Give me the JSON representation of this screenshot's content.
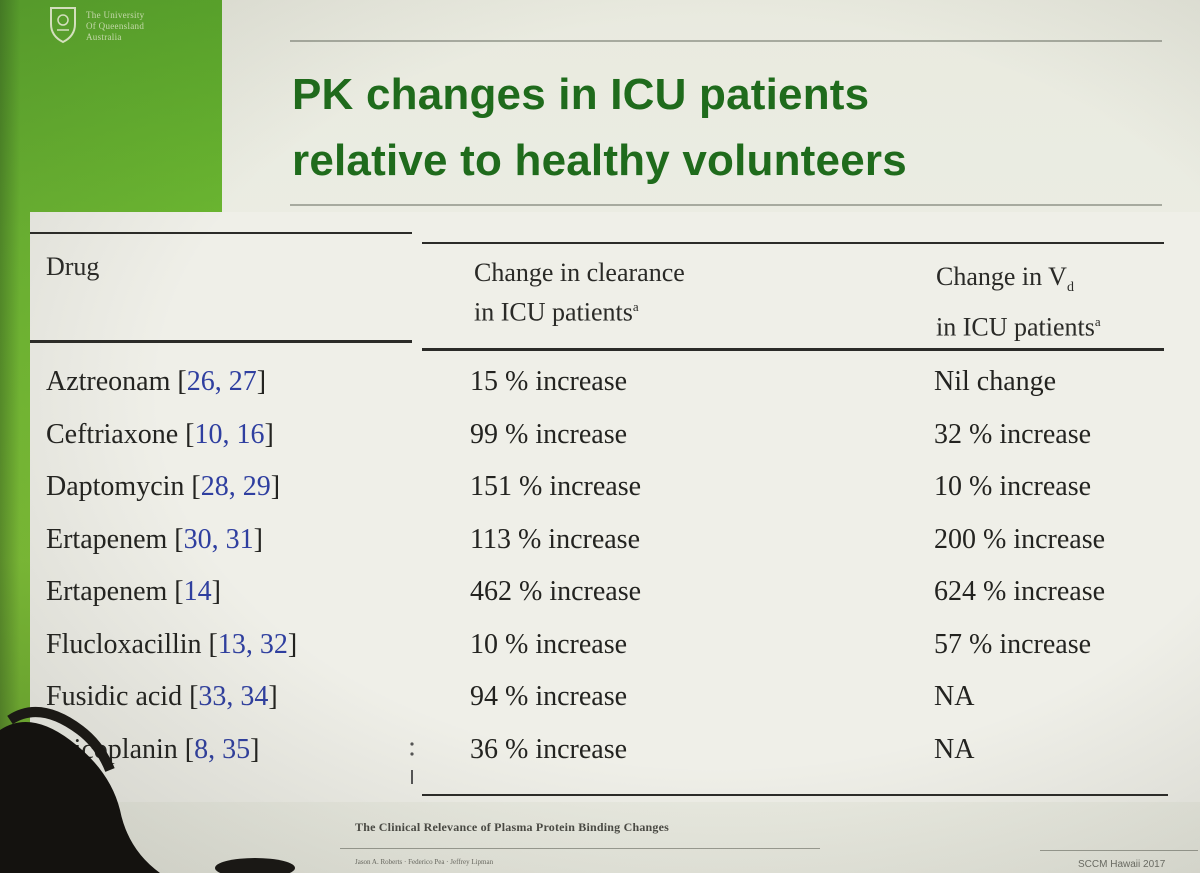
{
  "logo": {
    "text_lines": [
      "The University",
      "Of Queensland",
      "Australia"
    ]
  },
  "title": {
    "line1": "PK changes in ICU patients",
    "line2": "relative to healthy volunteers"
  },
  "table": {
    "headers": {
      "drug": "Drug",
      "clearance_line1": "Change in clearance",
      "clearance_line2": "in ICU patients",
      "clearance_sup": "a",
      "vd_line1": "Change in V",
      "vd_sub": "d",
      "vd_line2": "in ICU patients",
      "vd_sup": "a"
    },
    "rows": [
      {
        "drug": "Aztreonam",
        "refs": "26, 27",
        "clearance": "15 % increase",
        "vd": "Nil change"
      },
      {
        "drug": "Ceftriaxone",
        "refs": "10, 16",
        "clearance": "99 % increase",
        "vd": "32 % increase"
      },
      {
        "drug": "Daptomycin",
        "refs": "28, 29",
        "clearance": "151 % increase",
        "vd": "10 % increase"
      },
      {
        "drug": "Ertapenem",
        "refs": "30, 31",
        "clearance": "113 % increase",
        "vd": "200 % increase"
      },
      {
        "drug": "Ertapenem",
        "refs": "14",
        "clearance": "462 % increase",
        "vd": "624 % increase"
      },
      {
        "drug": "Flucloxacillin",
        "refs": "13, 32",
        "clearance": "10 % increase",
        "vd": "57 % increase"
      },
      {
        "drug": "Fusidic acid",
        "refs": "33, 34",
        "clearance": "94 % increase",
        "vd": "NA"
      },
      {
        "drug": "Teicoplanin",
        "refs": "8, 35",
        "clearance": "36 % increase",
        "vd": "NA"
      }
    ]
  },
  "footer": {
    "citation_title": "The Clinical Relevance of Plasma Protein Binding Changes",
    "authors": "Jason A. Roberts · Federico Pea · Jeffrey Lipman",
    "event": "SCCM Hawaii 2017"
  },
  "colors": {
    "brand_green": "#6cb631",
    "title_green": "#1f6b1c",
    "reference_blue": "#2f3fa0"
  }
}
